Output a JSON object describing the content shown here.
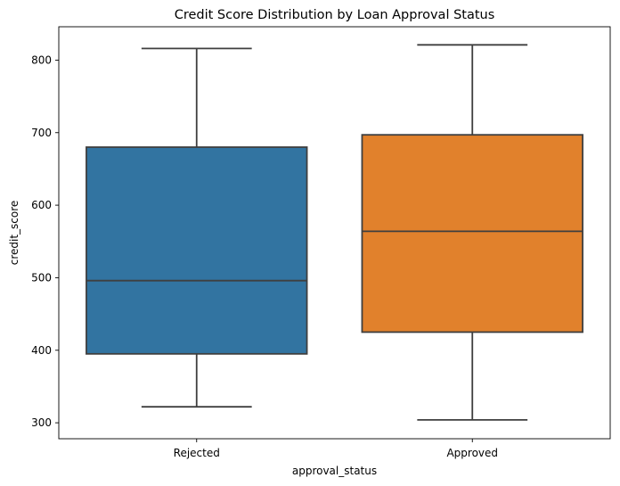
{
  "chart_data": {
    "type": "box",
    "title": "Credit Score Distribution by Loan Approval Status",
    "xlabel": "approval_status",
    "ylabel": "credit_score",
    "ylim": [
      278,
      846
    ],
    "yticks": [
      300,
      400,
      500,
      600,
      700,
      800
    ],
    "categories": [
      "Rejected",
      "Approved"
    ],
    "boxes": [
      {
        "category": "Rejected",
        "min": 322,
        "q1": 395,
        "median": 496,
        "q3": 680,
        "max": 816,
        "color": "#3274a1"
      },
      {
        "category": "Approved",
        "min": 304,
        "q1": 425,
        "median": 564,
        "q3": 697,
        "max": 821,
        "color": "#e1812c"
      }
    ],
    "grid": false,
    "edge_color": "#3f3f3f"
  }
}
